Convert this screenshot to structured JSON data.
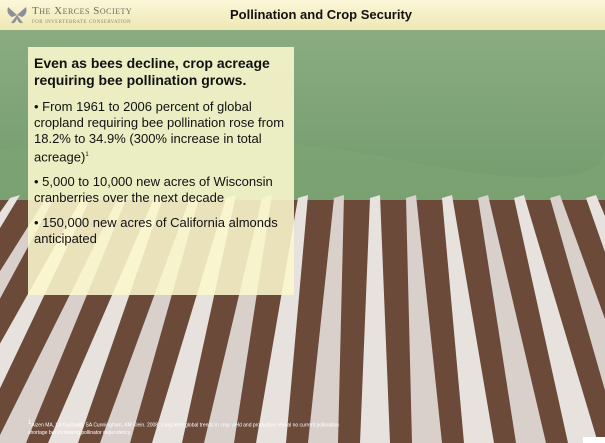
{
  "header": {
    "logo_name": "The Xerces Society",
    "logo_tagline": "for invertebrate conservation",
    "title": "Pollination and Crop Security"
  },
  "content": {
    "heading": "Even as bees decline, crop acreage requiring bee pollination grows.",
    "bullets": [
      {
        "text": "• From 1961 to 2006 percent of global cropland requiring bee pollination rose from 18.2% to 34.9% (300% increase in total acreage)",
        "note": "1"
      },
      {
        "text": "• 5,000 to 10,000 new acres of Wisconsin cranberries over the next decade"
      },
      {
        "text": "• 150,000 new acres of California almonds anticipated"
      }
    ]
  },
  "footnote": {
    "marker": "1",
    "text": "Aizen MA, LA Garibaldi, SA Cunningham, AM Klein.  2008. Long-term global trends in crop yield and production reveal no current pollination shortage but increasing pollinator dependency."
  }
}
